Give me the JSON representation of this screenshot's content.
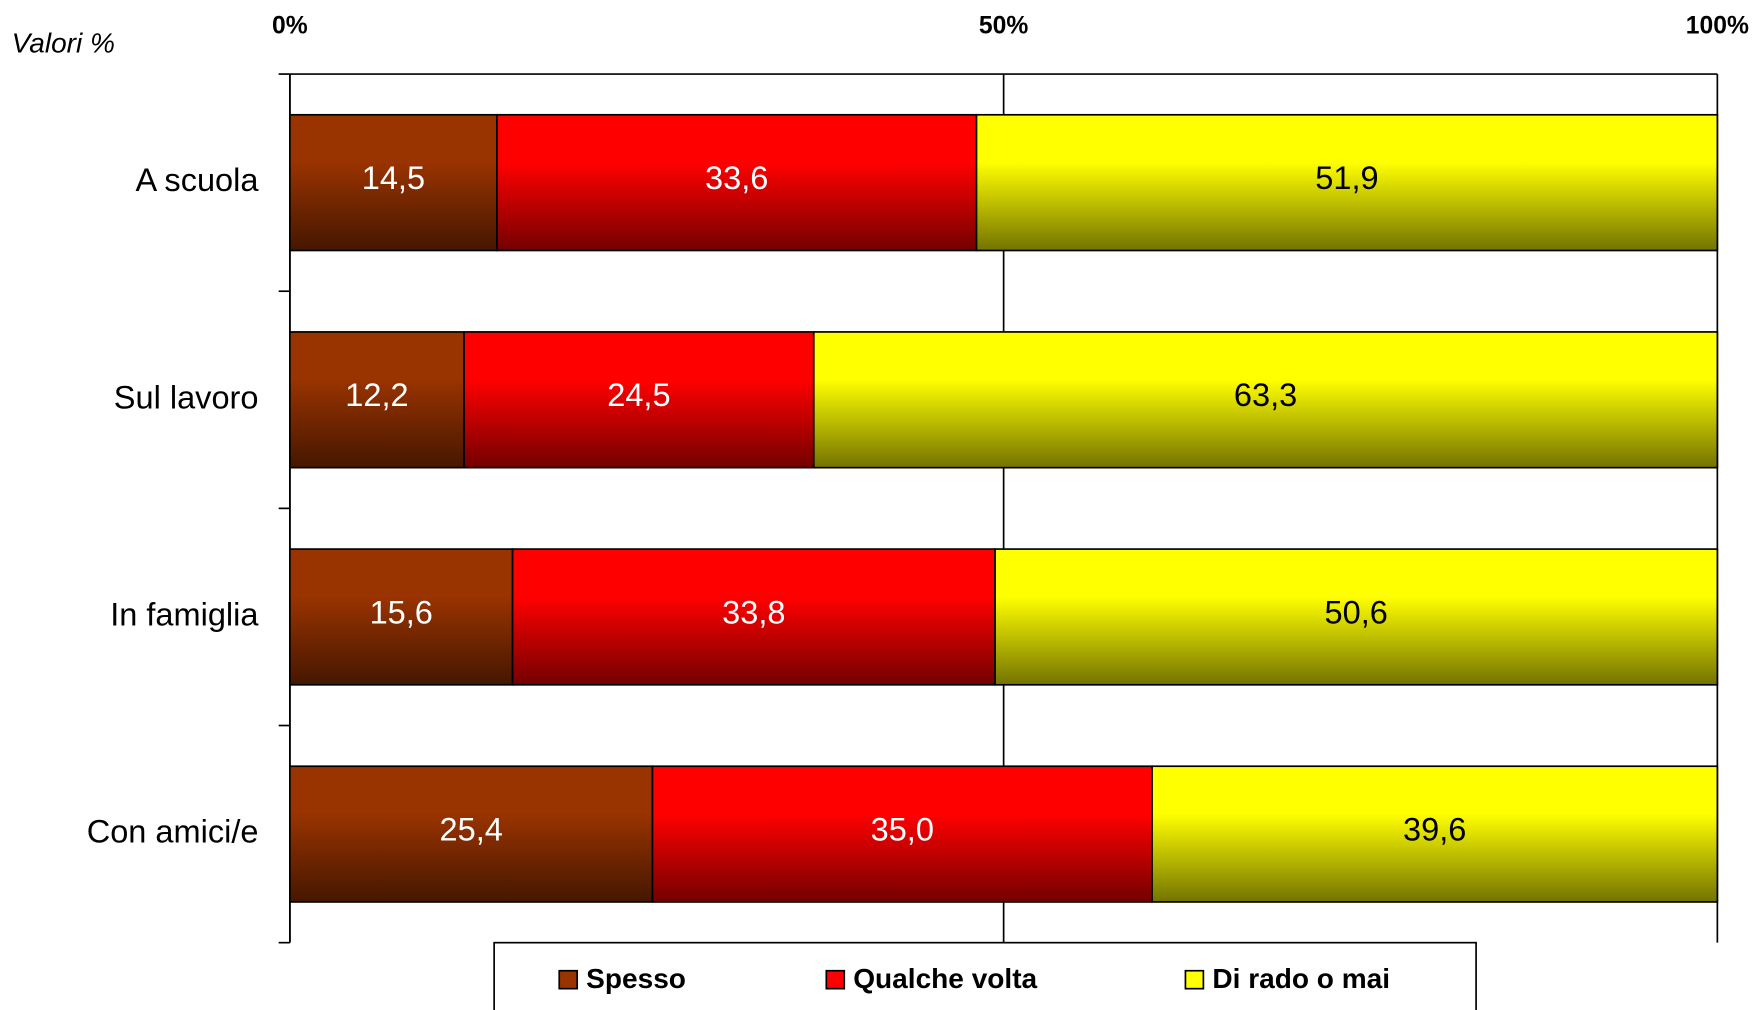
{
  "chart_data": {
    "type": "stacked-bar-horizontal",
    "annotation": "Valori %",
    "categories": [
      "A scuola",
      "Sul lavoro",
      "In famiglia",
      "Con amici/e"
    ],
    "series": [
      {
        "name": "Spesso",
        "color": "#993300",
        "values": [
          14.5,
          12.2,
          15.6,
          25.4
        ],
        "value_labels": [
          "14,5",
          "12,2",
          "15,6",
          "25,4"
        ]
      },
      {
        "name": "Qualche volta",
        "color": "#ff0000",
        "values": [
          33.6,
          24.5,
          33.8,
          35.0
        ],
        "value_labels": [
          "33,6",
          "24,5",
          "33,8",
          "35,0"
        ]
      },
      {
        "name": "Di rado o mai",
        "color": "#ffff00",
        "values": [
          51.9,
          63.3,
          50.6,
          39.6
        ],
        "value_labels": [
          "51,9",
          "63,3",
          "50,6",
          "39,6"
        ]
      }
    ],
    "xlim": [
      0,
      100
    ],
    "xticks": [
      {
        "value": 0,
        "label": "0%"
      },
      {
        "value": 50,
        "label": "50%"
      },
      {
        "value": 100,
        "label": "100%"
      }
    ],
    "grid": true,
    "legend": "bottom"
  }
}
